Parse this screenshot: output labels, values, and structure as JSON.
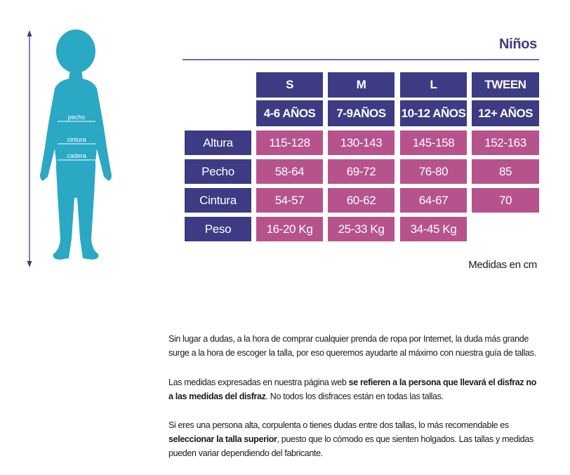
{
  "figure": {
    "labels": [
      "pecho",
      "cintura",
      "cadera"
    ],
    "colors": {
      "body": "#2aa8c4",
      "arrow": "#3d3b83"
    }
  },
  "title": "Niños",
  "colors": {
    "header": "#3d3b83",
    "value": "#b6538c",
    "rule": "#6b69b4"
  },
  "table": {
    "sizes": [
      "S",
      "M",
      "L",
      "TWEEN"
    ],
    "ages": [
      "4-6 AÑOS",
      "7-9AÑOS",
      "10-12 AÑOS",
      "12+ AÑOS"
    ],
    "rows": [
      {
        "label": "Altura",
        "values": [
          "115-128",
          "130-143",
          "145-158",
          "152-163"
        ]
      },
      {
        "label": "Pecho",
        "values": [
          "58-64",
          "69-72",
          "76-80",
          "85"
        ]
      },
      {
        "label": "Cintura",
        "values": [
          "54-57",
          "60-62",
          "64-67",
          "70"
        ]
      },
      {
        "label": "Peso",
        "values": [
          "16-20 Kg",
          "25-33 Kg",
          "34-45 Kg"
        ]
      }
    ]
  },
  "units_note": "Medidas en cm",
  "paragraphs": {
    "p1": "Sin lugar a dudas, a la hora de comprar cualquier prenda de ropa por Internet, la duda más grande surge a la hora de escoger la talla, por eso queremos ayudarte al máximo con nuestra guía de tallas.",
    "p2_a": "Las medidas expresadas en nuestra página web ",
    "p2_b": "se refieren a la persona que llevará el disfraz no a las medidas del disfraz",
    "p2_c": ". No todos los disfraces están en todas las tallas.",
    "p3_a": "Si eres una persona alta, corpulenta o tienes dudas entre dos tallas, lo más recomendable es ",
    "p3_b": "seleccionar la talla superior",
    "p3_c": ", puesto que lo cómodo es que sienten holgados. Las tallas y medidas pueden variar dependiendo del fabricante."
  }
}
